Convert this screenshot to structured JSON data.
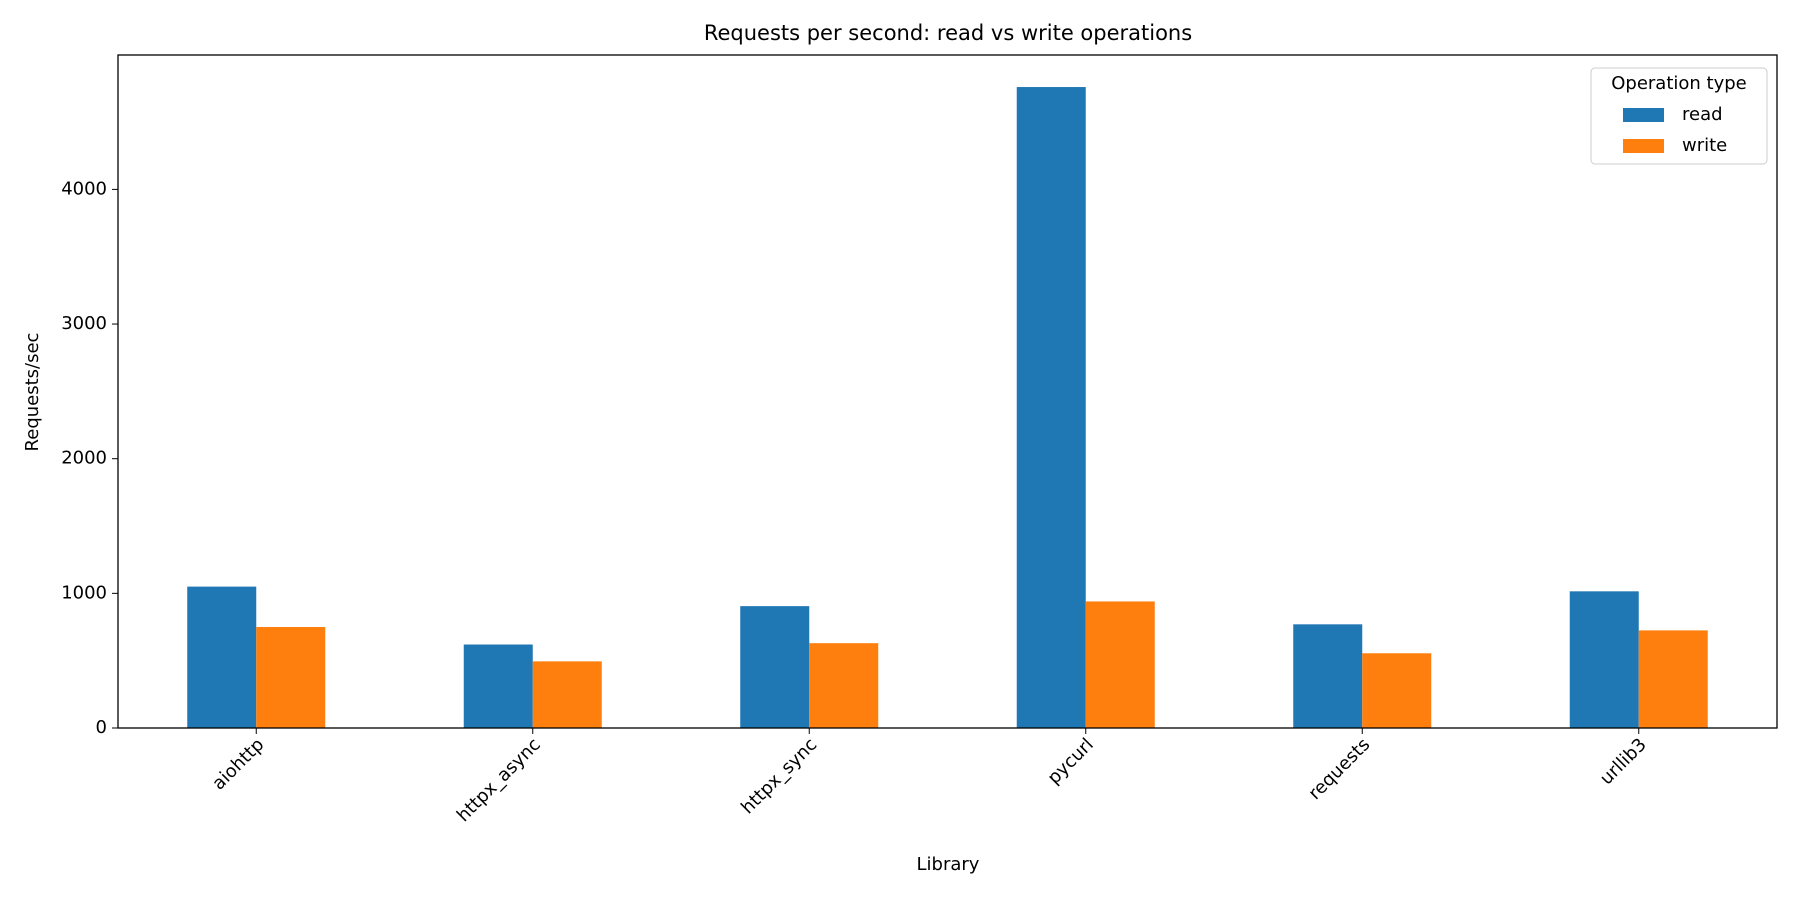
{
  "chart_data": {
    "type": "bar",
    "title": "Requests per second: read vs write operations",
    "x_label": "Library",
    "y_label": "Requests/sec",
    "categories": [
      "aiohttp",
      "httpx_async",
      "httpx_sync",
      "pycurl",
      "requests",
      "urllib3"
    ],
    "series": [
      {
        "name": "read",
        "color": "#1f77b4",
        "values": [
          1050,
          620,
          905,
          4760,
          770,
          1015
        ]
      },
      {
        "name": "write",
        "color": "#ff7f0e",
        "values": [
          750,
          495,
          630,
          940,
          555,
          725
        ]
      }
    ],
    "ylim": [
      0,
      4998
    ],
    "yticks": [
      0,
      1000,
      2000,
      3000,
      4000
    ],
    "legend_title": "Operation type",
    "legend_position": "upper right",
    "grid": false
  }
}
